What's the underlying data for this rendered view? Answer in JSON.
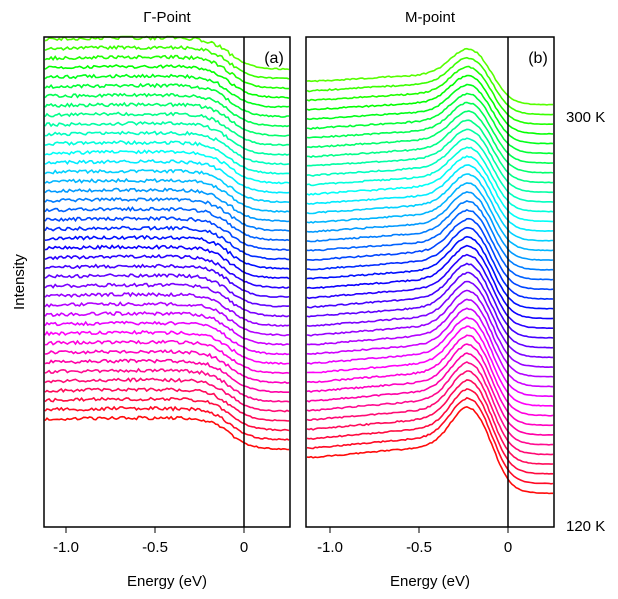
{
  "ylabel": "Intensity",
  "temperature_labels": {
    "top": "300 K",
    "bottom": "120 K"
  },
  "chart_data": [
    {
      "type": "line",
      "title": "Γ-Point",
      "panel_label": "(a)",
      "xlabel": "Energy (eV)",
      "xlim": [
        -1.12,
        0.26
      ],
      "xticks": [
        -1.0,
        -0.5,
        0
      ],
      "xtick_labels": [
        "-1.0",
        "-0.5",
        "0"
      ],
      "vertical_line_x": 0,
      "series_count": 41,
      "curve_model": {
        "shape": "plateau with Fermi-edge drop near 0 eV",
        "plateau_level": 1.0,
        "tail_level": 0.35,
        "edge_center_eV": -0.08,
        "edge_width_eV": 0.06,
        "offset_step": 0.18,
        "top_curve_temperature_K": 300,
        "bottom_curve_temperature_K": 120
      }
    },
    {
      "type": "line",
      "title": "M-point",
      "panel_label": "(b)",
      "xlabel": "Energy (eV)",
      "xlim": [
        -1.12,
        0.26
      ],
      "xticks": [
        -1.0,
        -0.5,
        0
      ],
      "xtick_labels": [
        "-1.0",
        "-0.5",
        "0"
      ],
      "vertical_line_x": 0,
      "series_count": 41,
      "curve_model": {
        "shape": "peak below Fermi level then drop",
        "peak_position_eV": -0.22,
        "baseline_level": 0.7,
        "peak_height": 1.35,
        "tail_level": 0.08,
        "offset_step": 0.18,
        "top_curve_temperature_K": 300,
        "bottom_curve_temperature_K": 120
      }
    }
  ]
}
